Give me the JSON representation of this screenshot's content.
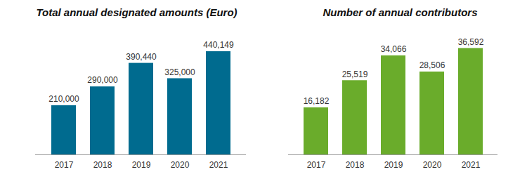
{
  "chart_data": [
    {
      "type": "bar",
      "title": "Total annual designated amounts (Euro)",
      "categories": [
        "2017",
        "2018",
        "2019",
        "2020",
        "2021"
      ],
      "values": [
        210000,
        290000,
        390440,
        325000,
        440149
      ],
      "value_labels": [
        "210,000",
        "290,000",
        "390,440",
        "325,000",
        "440,149"
      ],
      "color": "#006b8f",
      "ylim": [
        0,
        500000
      ],
      "grid": false,
      "data_labels": true,
      "tick_labels": "x"
    },
    {
      "type": "bar",
      "title": "Number of annual contributors",
      "categories": [
        "2017",
        "2018",
        "2019",
        "2020",
        "2021"
      ],
      "values": [
        16182,
        25519,
        34066,
        28506,
        36592
      ],
      "value_labels": [
        "16,182",
        "25,519",
        "34,066",
        "28,506",
        "36,592"
      ],
      "color": "#6aac2b",
      "ylim": [
        0,
        42000
      ],
      "grid": false,
      "data_labels": true,
      "tick_labels": "x"
    }
  ]
}
